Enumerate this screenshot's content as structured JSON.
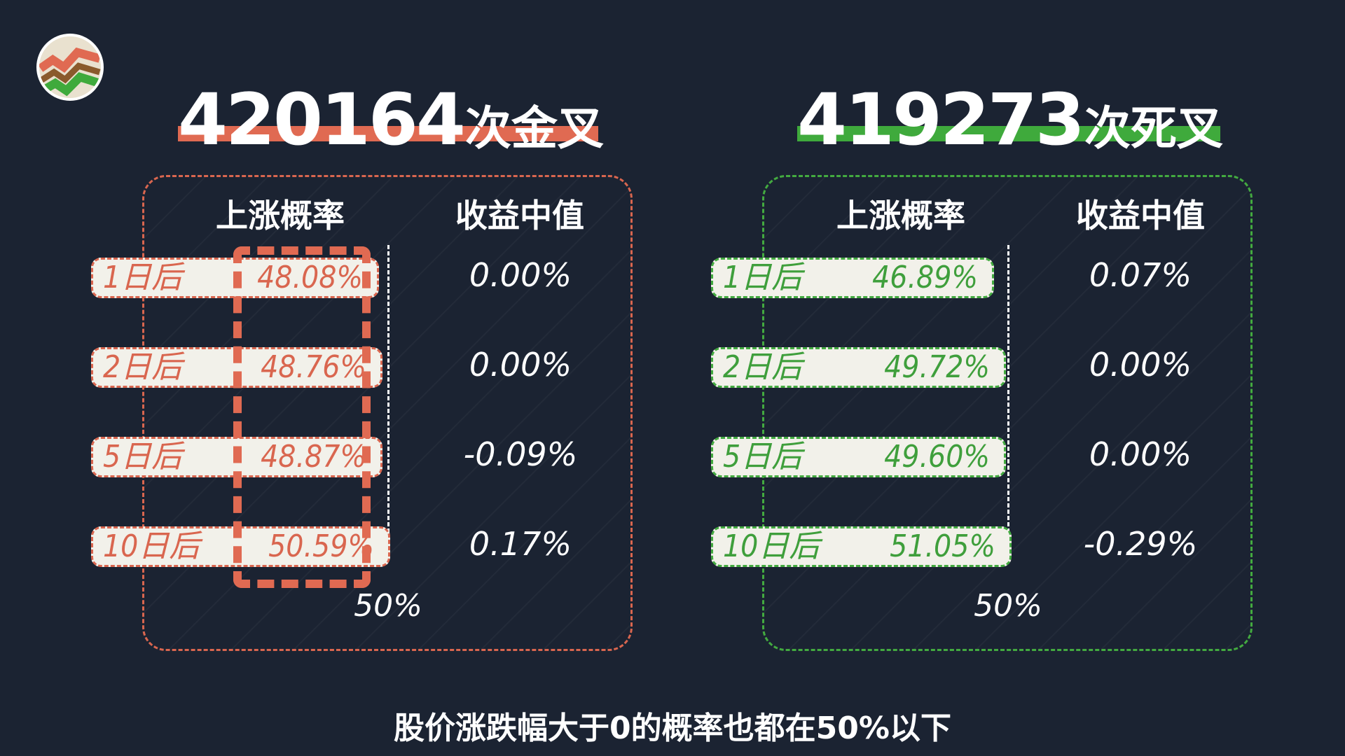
{
  "colors": {
    "gold_cross": "#e06a52",
    "death_cross": "#3faa3c",
    "background": "#1b2332"
  },
  "headline_left": {
    "number": "420164",
    "suffix": "次金叉"
  },
  "headline_right": {
    "number": "419273",
    "suffix": "次死叉"
  },
  "headers": {
    "prob": "上涨概率",
    "median": "收益中值"
  },
  "reference": {
    "label": "50%"
  },
  "caption": "股价涨跌幅大于0的概率也都在50%以下",
  "chart_data": [
    {
      "type": "bar",
      "name": "420164次金叉",
      "categories": [
        "1日后",
        "2日后",
        "5日后",
        "10日后"
      ],
      "series": [
        {
          "name": "上涨概率",
          "values": [
            48.08,
            48.76,
            48.87,
            50.59
          ],
          "labels": [
            "48.08%",
            "48.76%",
            "48.87%",
            "50.59%"
          ]
        },
        {
          "name": "收益中值",
          "values": [
            0.0,
            0.0,
            -0.09,
            0.17
          ],
          "labels": [
            "0.00%",
            "0.00%",
            "-0.09%",
            "0.17%"
          ]
        }
      ],
      "reference_line": 50,
      "color": "#e06a52"
    },
    {
      "type": "bar",
      "name": "419273次死叉",
      "categories": [
        "1日后",
        "2日后",
        "5日后",
        "10日后"
      ],
      "series": [
        {
          "name": "上涨概率",
          "values": [
            46.89,
            49.72,
            49.6,
            51.05
          ],
          "labels": [
            "46.89%",
            "49.72%",
            "49.60%",
            "51.05%"
          ]
        },
        {
          "name": "收益中值",
          "values": [
            0.07,
            0.0,
            0.0,
            -0.29
          ],
          "labels": [
            "0.07%",
            "0.00%",
            "0.00%",
            "-0.29%"
          ]
        }
      ],
      "reference_line": 50,
      "color": "#3faa3c"
    }
  ]
}
